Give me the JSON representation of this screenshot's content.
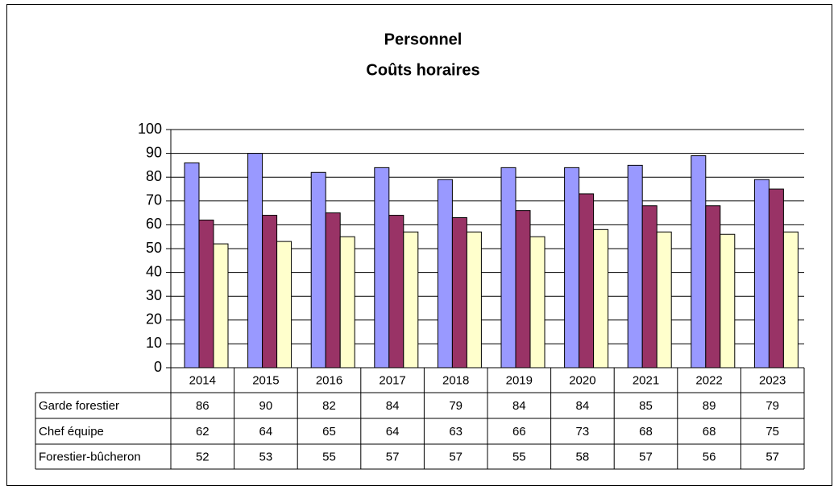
{
  "chart_data": {
    "type": "bar",
    "title": "Personnel",
    "subtitle": "Coûts horaires",
    "categories": [
      "2014",
      "2015",
      "2016",
      "2017",
      "2018",
      "2019",
      "2020",
      "2021",
      "2022",
      "2023"
    ],
    "series": [
      {
        "name": "Garde forestier",
        "color": "#9999ff",
        "values": [
          86,
          90,
          82,
          84,
          79,
          84,
          84,
          85,
          89,
          79
        ]
      },
      {
        "name": "Chef équipe",
        "color": "#993366",
        "values": [
          62,
          64,
          65,
          64,
          63,
          66,
          73,
          68,
          68,
          75
        ]
      },
      {
        "name": "Forestier-bûcheron",
        "color": "#ffffcc",
        "values": [
          52,
          53,
          55,
          57,
          57,
          55,
          58,
          57,
          56,
          57
        ]
      }
    ],
    "ylim": [
      0,
      100
    ],
    "yticks": [
      0,
      10,
      20,
      30,
      40,
      50,
      60,
      70,
      80,
      90,
      100
    ],
    "grid": true
  }
}
